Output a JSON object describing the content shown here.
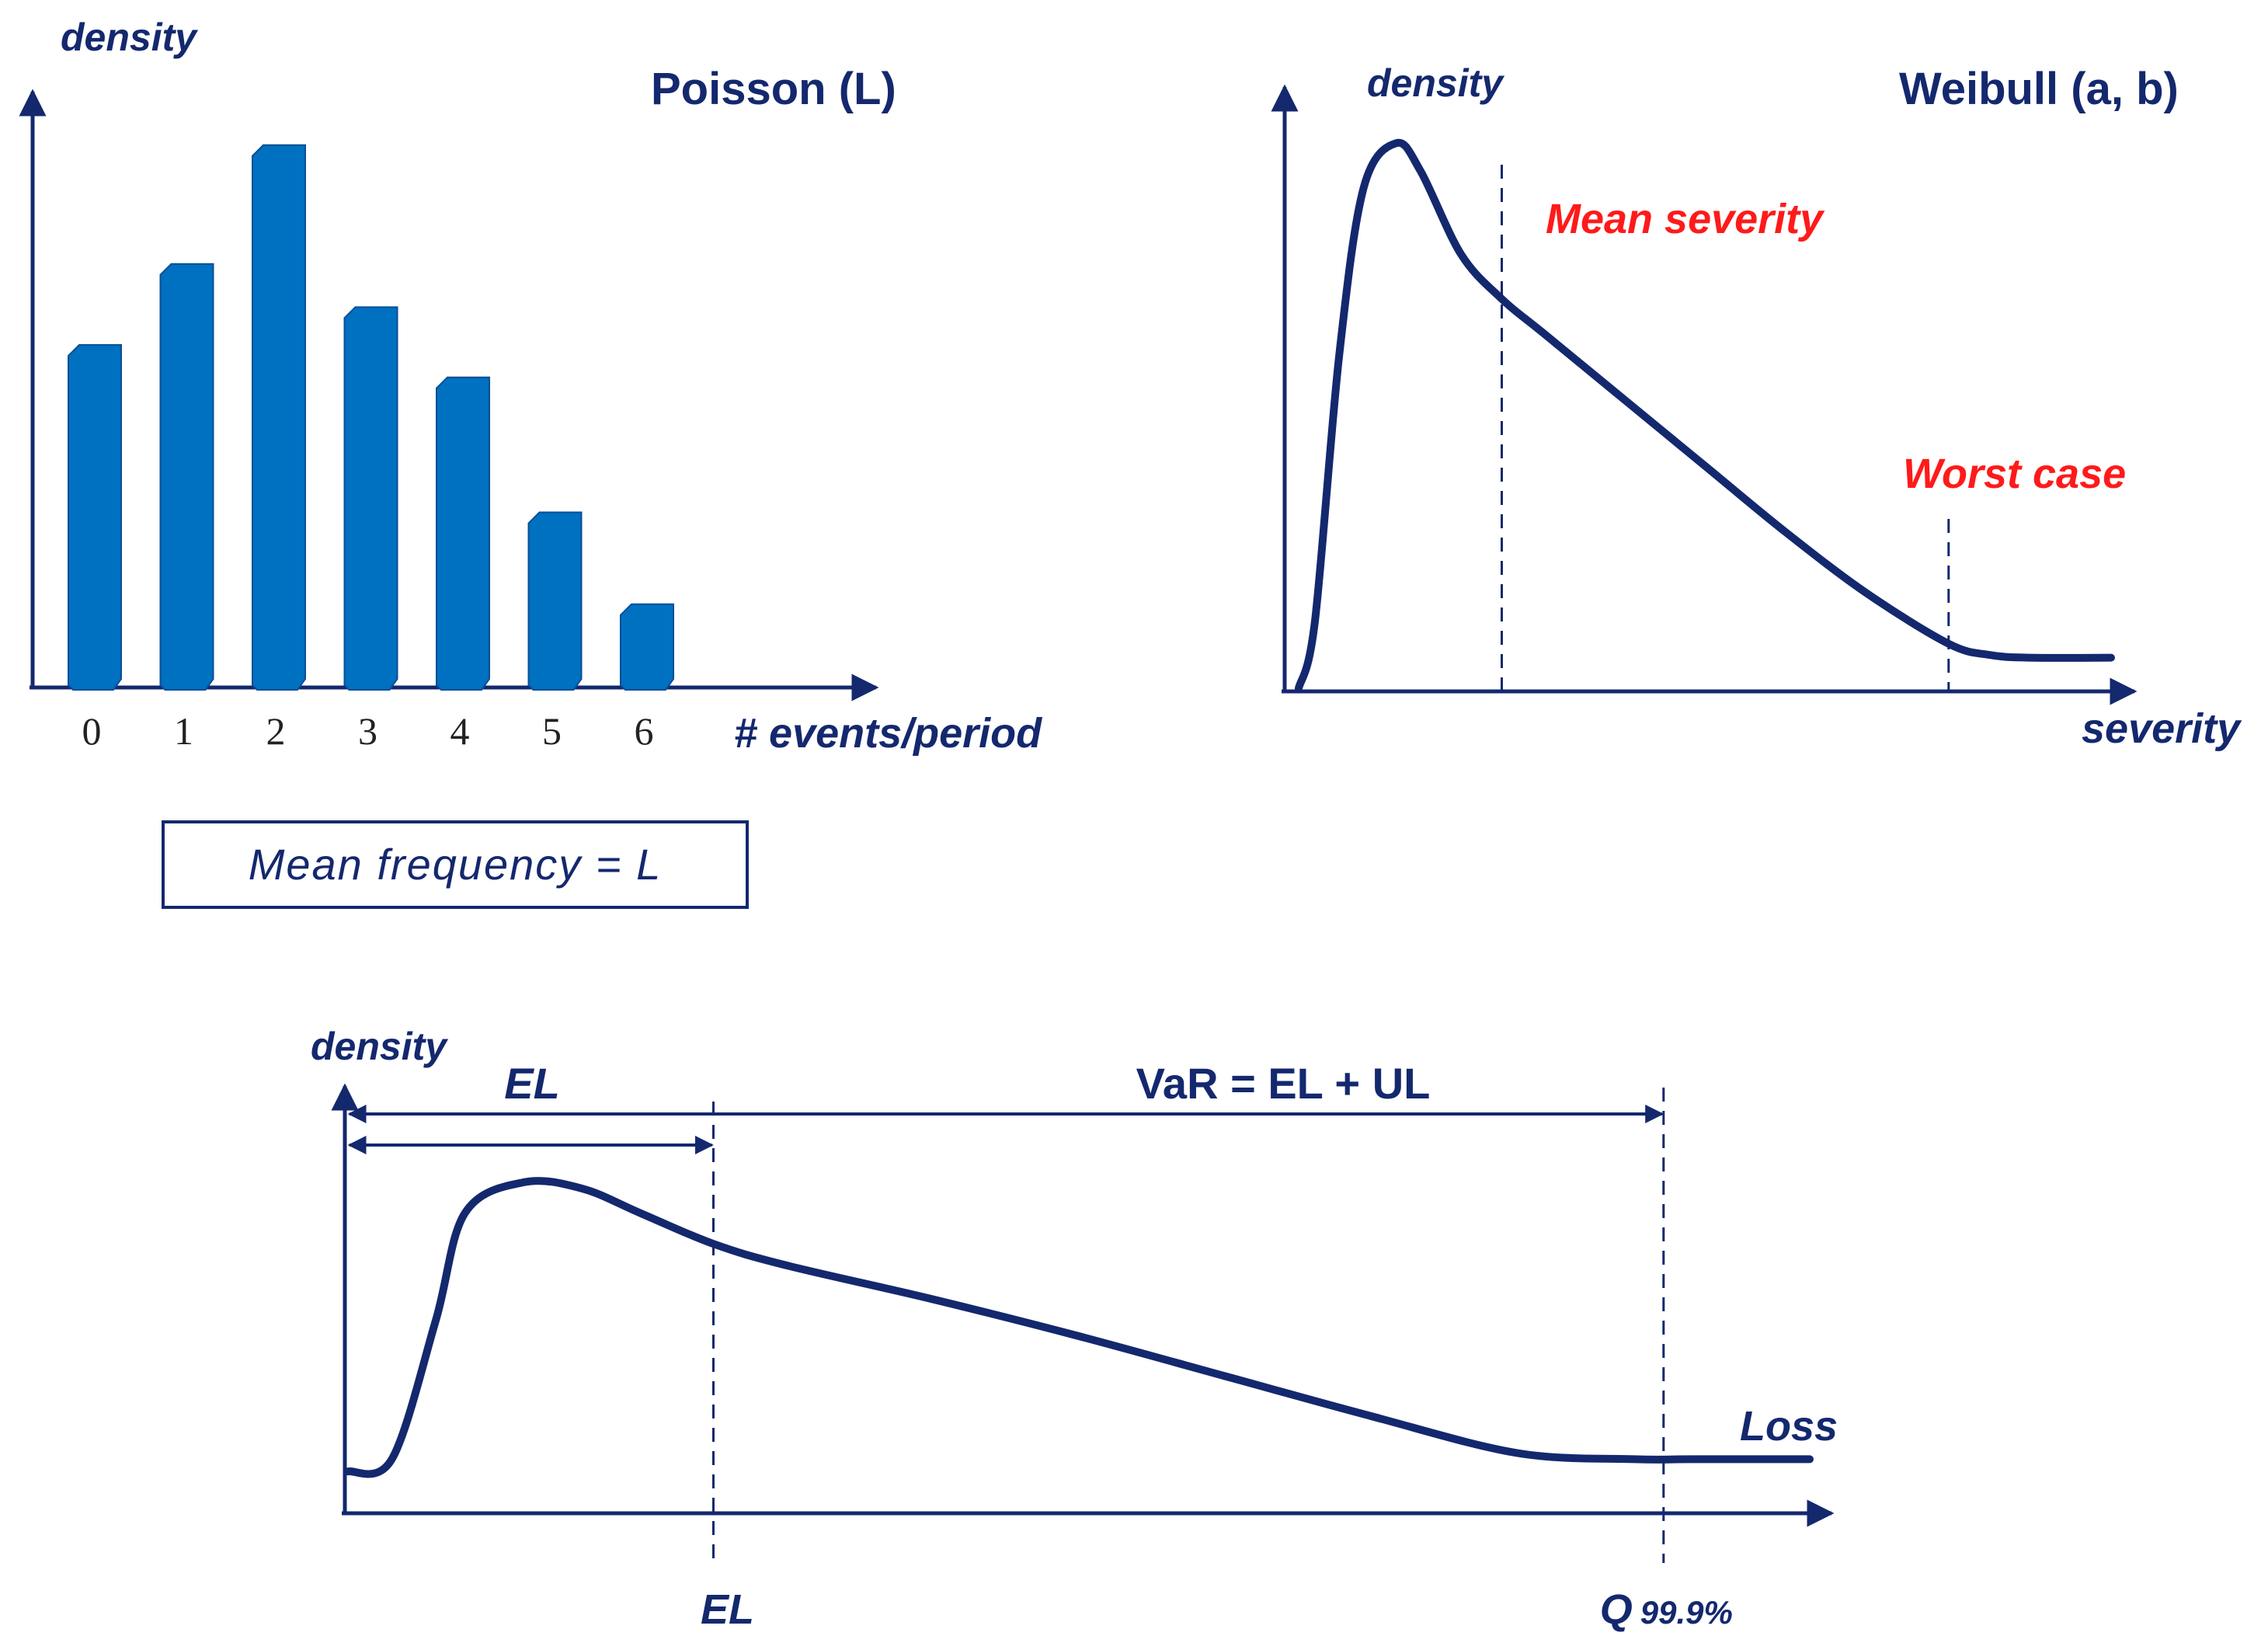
{
  "colors": {
    "axis": "#14286e",
    "bar": "#0070c0",
    "bar_shadow": "#0a4f96",
    "highlight": "#ff1a1a"
  },
  "chart_data": [
    {
      "type": "bar",
      "title": "Poisson (L)",
      "ylabel": "density",
      "xlabel": "# events/period",
      "categories": [
        "0",
        "1",
        "2",
        "3",
        "4",
        "5",
        "6"
      ],
      "values": [
        0.63,
        0.78,
        1.0,
        0.7,
        0.57,
        0.32,
        0.15
      ],
      "ylim": [
        0,
        1.05
      ],
      "grid": false,
      "note": "Mean frequency = L"
    },
    {
      "type": "line",
      "title": "Weibull (a, b)",
      "ylabel": "density",
      "xlabel": "severity",
      "x": [
        0,
        0.02,
        0.05,
        0.08,
        0.12,
        0.15,
        0.2,
        0.25,
        0.3,
        0.4,
        0.5,
        0.6,
        0.7,
        0.8,
        0.85,
        0.9,
        1.0
      ],
      "y": [
        0,
        0.12,
        0.6,
        0.9,
        0.98,
        0.93,
        0.78,
        0.7,
        0.64,
        0.52,
        0.4,
        0.28,
        0.17,
        0.08,
        0.06,
        0.055,
        0.055
      ],
      "xlim": [
        0,
        1.0
      ],
      "ylim": [
        0,
        1.0
      ],
      "grid": false,
      "markers": [
        {
          "label": "Mean severity",
          "x": 0.25
        },
        {
          "label": "Worst case",
          "x": 0.8
        }
      ]
    },
    {
      "type": "line",
      "ylabel": "density",
      "xlabel": "Loss",
      "x": [
        0,
        0.03,
        0.06,
        0.08,
        0.12,
        0.16,
        0.2,
        0.25,
        0.3,
        0.4,
        0.5,
        0.6,
        0.7,
        0.8,
        0.88,
        0.92,
        1.0
      ],
      "y": [
        0.06,
        0.1,
        0.55,
        0.9,
        1.0,
        0.98,
        0.9,
        0.8,
        0.73,
        0.62,
        0.5,
        0.37,
        0.24,
        0.12,
        0.1,
        0.1,
        0.1
      ],
      "xlim": [
        0,
        1.0
      ],
      "ylim": [
        0,
        1.0
      ],
      "grid": false,
      "markers": [
        {
          "label": "EL",
          "x": 0.25
        },
        {
          "label": "Q",
          "sublabel": "99.9%",
          "x": 0.9
        }
      ],
      "spans": [
        {
          "label": "EL",
          "from": 0,
          "to": 0.25
        },
        {
          "label": "VaR = EL + UL",
          "from": 0,
          "to": 0.9
        }
      ]
    }
  ]
}
